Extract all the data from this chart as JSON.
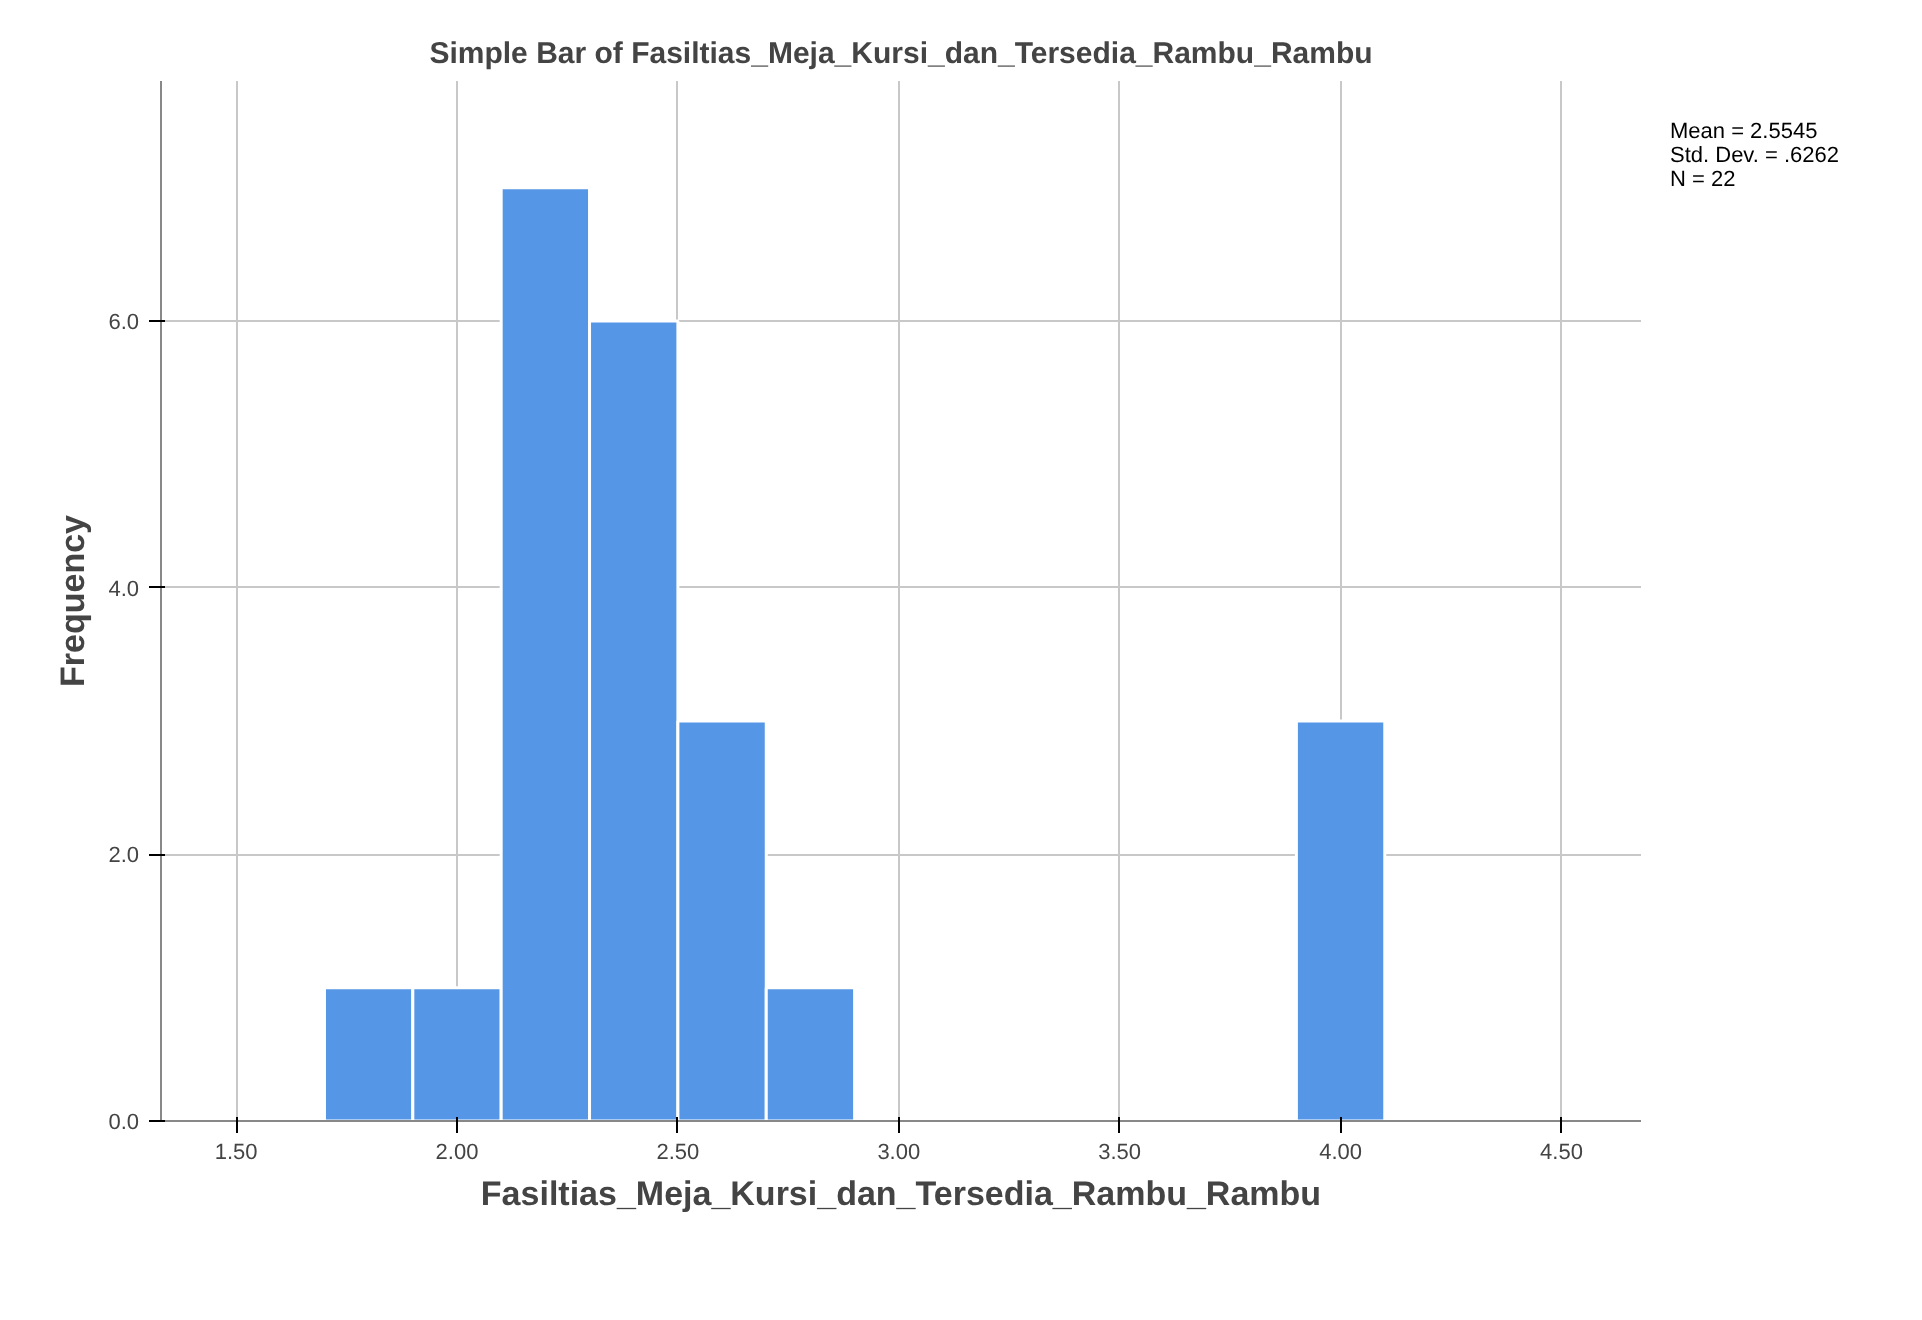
{
  "chart_data": {
    "type": "histogram",
    "title": "Simple Bar of Fasiltias_Meja_Kursi_dan_Tersedia_Rambu_Rambu",
    "xlabel": "Fasiltias_Meja_Kursi_dan_Tersedia_Rambu_Rambu",
    "ylabel": "Frequency",
    "bins": [
      1.7,
      1.9,
      2.1,
      2.3,
      2.5,
      2.7,
      2.9,
      3.1,
      3.3,
      3.5,
      3.7,
      3.9,
      4.1
    ],
    "values": [
      1,
      1,
      7,
      6,
      3,
      1,
      0,
      0,
      0,
      0,
      0,
      3
    ],
    "color": "#5596e6",
    "xlim": [
      1.33,
      4.68
    ],
    "ylim": [
      0,
      7.8
    ],
    "xticks": [
      {
        "value": 1.5,
        "label": "1.50"
      },
      {
        "value": 2.0,
        "label": "2.00"
      },
      {
        "value": 2.5,
        "label": "2.50"
      },
      {
        "value": 3.0,
        "label": "3.00"
      },
      {
        "value": 3.5,
        "label": "3.50"
      },
      {
        "value": 4.0,
        "label": "4.00"
      },
      {
        "value": 4.5,
        "label": "4.50"
      }
    ],
    "yticks": [
      {
        "value": 0,
        "label": "0.0"
      },
      {
        "value": 2,
        "label": "2.0"
      },
      {
        "value": 4,
        "label": "4.0"
      },
      {
        "value": 6,
        "label": "6.0"
      }
    ],
    "grid": true,
    "annotations": [
      "Mean = 2.5545",
      "Std. Dev. = .6262",
      "N = 22"
    ]
  }
}
